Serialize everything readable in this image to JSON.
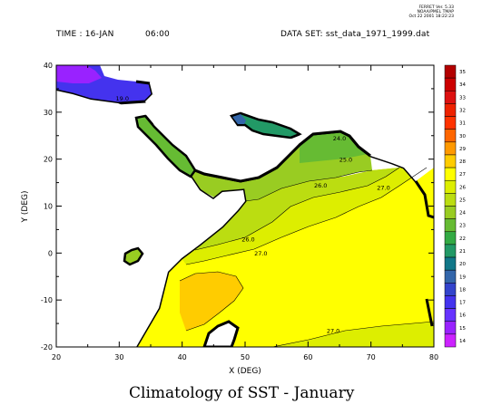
{
  "header": {
    "time_label": "TIME : 16-JAN",
    "time_value": "06:00",
    "dataset": "DATA SET: sst_data_1971_1999.dat",
    "version": [
      "FERRET Ver. 5.33",
      "NOAA/PMEL TMAP",
      "Oct 22 2001 18:22:23"
    ]
  },
  "caption": "Climatology of SST - January",
  "chart_data": {
    "type": "heatmap",
    "title": "Climatology of SST - January",
    "xlabel": "X (DEG)",
    "ylabel": "Y (DEG)",
    "xlim": [
      20,
      80
    ],
    "ylim": [
      -20,
      40
    ],
    "xticks": [
      20,
      30,
      40,
      50,
      60,
      70,
      80
    ],
    "yticks": [
      40,
      30,
      20,
      10,
      0,
      -10,
      -20
    ],
    "colorbar": {
      "levels": [
        35,
        34,
        33,
        32,
        31,
        30,
        29,
        28,
        27,
        26,
        25,
        24,
        23,
        22,
        21,
        20,
        19,
        18,
        17,
        16,
        15,
        14
      ],
      "colors": [
        "#b30000",
        "#cc0000",
        "#dd1111",
        "#ee2200",
        "#ff3300",
        "#ff6600",
        "#ff9900",
        "#ffcc00",
        "#ffff00",
        "#ddee00",
        "#bbdd11",
        "#99cc22",
        "#66bb33",
        "#33aa44",
        "#229966",
        "#117788",
        "#3366aa",
        "#3344cc",
        "#4433ee",
        "#6633ff",
        "#9922ff",
        "#cc22ff"
      ]
    },
    "contour_labels": [
      {
        "x": 30.5,
        "y": 32.5,
        "label": "19.0"
      },
      {
        "x": 65.0,
        "y": 24.0,
        "label": "24.0"
      },
      {
        "x": 66.0,
        "y": 19.5,
        "label": "25.0"
      },
      {
        "x": 62.0,
        "y": 14.0,
        "label": "26.0"
      },
      {
        "x": 72.0,
        "y": 13.5,
        "label": "27.0"
      },
      {
        "x": 50.5,
        "y": 2.5,
        "label": "26.0"
      },
      {
        "x": 52.5,
        "y": -0.5,
        "label": "27.0"
      },
      {
        "x": 64.0,
        "y": -17.0,
        "label": "27.0"
      }
    ]
  }
}
